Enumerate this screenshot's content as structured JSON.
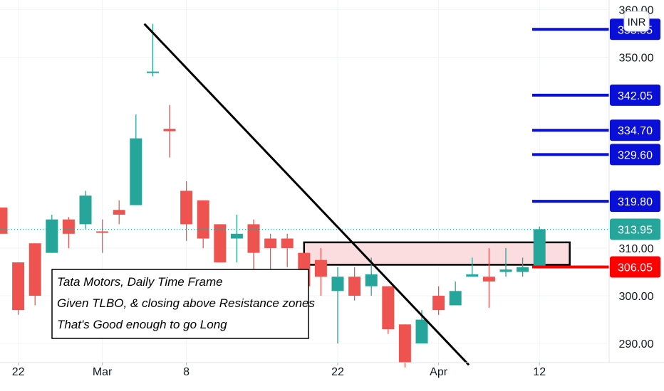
{
  "chart_data": {
    "type": "candlestick",
    "currency": "INR",
    "y_range": [
      286,
      362
    ],
    "price_ticks": [
      290,
      300,
      310,
      350,
      360
    ],
    "price_tick_labels": [
      "290.00",
      "300.00",
      "310.00",
      "350.00",
      "360.00"
    ],
    "x_ticks": [
      {
        "index": 1,
        "label": "22"
      },
      {
        "index": 6,
        "label": "Mar"
      },
      {
        "index": 11,
        "label": "8"
      },
      {
        "index": 20,
        "label": "22"
      },
      {
        "index": 26,
        "label": "Apr"
      },
      {
        "index": 32,
        "label": "12"
      }
    ],
    "candles": [
      {
        "o": 318.5,
        "h": 318.5,
        "l": 313.0,
        "c": 313.0
      },
      {
        "o": 307.0,
        "h": 307.0,
        "l": 296.0,
        "c": 297.0
      },
      {
        "o": 311.0,
        "h": 311.0,
        "l": 298.0,
        "c": 300.0
      },
      {
        "o": 309.0,
        "h": 317.0,
        "l": 309.0,
        "c": 316.0
      },
      {
        "o": 316.0,
        "h": 316.5,
        "l": 310.0,
        "c": 313.0
      },
      {
        "o": 315.0,
        "h": 322.0,
        "l": 314.0,
        "c": 321.0
      },
      {
        "o": 313.5,
        "h": 316.0,
        "l": 309.0,
        "c": 313.2
      },
      {
        "o": 318.0,
        "h": 320.0,
        "l": 315.0,
        "c": 317.0
      },
      {
        "o": 319.0,
        "h": 338.0,
        "l": 319.0,
        "c": 333.0
      },
      {
        "o": 347.0,
        "h": 357.0,
        "l": 346.0,
        "c": 347.0
      },
      {
        "o": 335.0,
        "h": 340.0,
        "l": 329.0,
        "c": 334.5
      },
      {
        "o": 322.0,
        "h": 324.0,
        "l": 311.5,
        "c": 315.0
      },
      {
        "o": 320.0,
        "h": 320.0,
        "l": 310.0,
        "c": 312.0
      },
      {
        "o": 315.0,
        "h": 315.0,
        "l": 307.0,
        "c": 307.0
      },
      {
        "o": 312.0,
        "h": 317.0,
        "l": 307.0,
        "c": 313.0
      },
      {
        "o": 315.0,
        "h": 316.0,
        "l": 305.0,
        "c": 309.0
      },
      {
        "o": 312.0,
        "h": 313.0,
        "l": 304.0,
        "c": 310.0
      },
      {
        "o": 312.0,
        "h": 313.0,
        "l": 306.0,
        "c": 310.0
      },
      {
        "o": 309.0,
        "h": 309.0,
        "l": 298.0,
        "c": 302.0
      },
      {
        "o": 307.5,
        "h": 310.0,
        "l": 300.0,
        "c": 304.0
      },
      {
        "o": 301.0,
        "h": 306.0,
        "l": 290.0,
        "c": 304.0
      },
      {
        "o": 304.0,
        "h": 306.0,
        "l": 299.0,
        "c": 300.0
      },
      {
        "o": 302.0,
        "h": 308.0,
        "l": 300.0,
        "c": 304.5
      },
      {
        "o": 302.0,
        "h": 302.0,
        "l": 292.0,
        "c": 293.0
      },
      {
        "o": 294.0,
        "h": 294.0,
        "l": 285.0,
        "c": 286.0
      },
      {
        "o": 290.0,
        "h": 297.0,
        "l": 290.0,
        "c": 295.0
      },
      {
        "o": 300.0,
        "h": 302.0,
        "l": 296.0,
        "c": 297.0
      },
      {
        "o": 298.0,
        "h": 303.0,
        "l": 298.0,
        "c": 301.0
      },
      {
        "o": 304.0,
        "h": 308.0,
        "l": 304.0,
        "c": 304.5
      },
      {
        "o": 304.0,
        "h": 310.0,
        "l": 297.5,
        "c": 303.0
      },
      {
        "o": 305.0,
        "h": 310.0,
        "l": 304.0,
        "c": 305.5
      },
      {
        "o": 305.0,
        "h": 308.0,
        "l": 304.0,
        "c": 306.0
      },
      {
        "o": 306.0,
        "h": 314.5,
        "l": 306.0,
        "c": 313.95
      }
    ],
    "last_price": {
      "value": 313.95,
      "label": "313.95",
      "color": "#26a69a"
    },
    "levels": [
      {
        "value": 355.85,
        "label": "355.85",
        "color": "#0a0fd8"
      },
      {
        "value": 342.05,
        "label": "342.05",
        "color": "#0a0fd8"
      },
      {
        "value": 334.7,
        "label": "334.70",
        "color": "#0a0fd8"
      },
      {
        "value": 329.6,
        "label": "329.60",
        "color": "#0a0fd8"
      },
      {
        "value": 319.8,
        "label": "319.80",
        "color": "#0a0fd8"
      },
      {
        "value": 306.05,
        "label": "306.05",
        "color": "#ff0000"
      }
    ],
    "trendline": {
      "from": {
        "index": 8.5,
        "value": 357
      },
      "to": {
        "index": 27.8,
        "value": 285.5
      }
    },
    "resistance_zone": {
      "from_index": 18.0,
      "to_index": 33.8,
      "low": 306.5,
      "high": 311.2
    },
    "annotation": {
      "lines": [
        "Tata Motors, Daily Time Frame",
        "Given TLBO, & closing above Resistance zones",
        "That's Good enough to go Long"
      ]
    },
    "colors": {
      "up": "#26a69a",
      "down": "#ef5350",
      "level_blue": "#0a0fd8",
      "level_red": "#ff0000",
      "zone_fill": "#fbdde0"
    }
  }
}
